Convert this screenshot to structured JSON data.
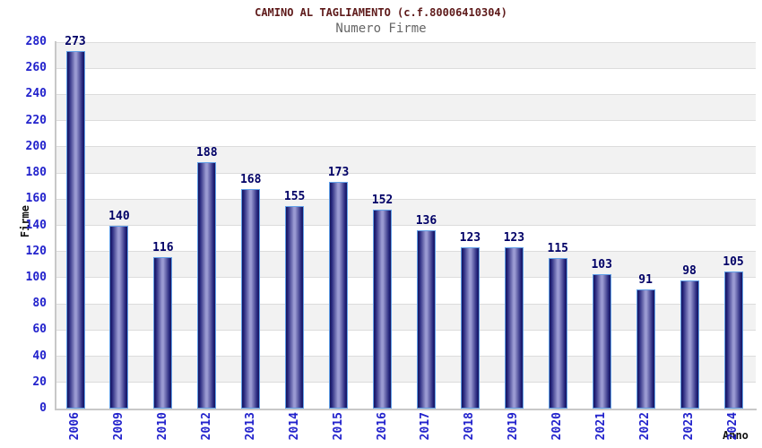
{
  "chart_data": {
    "type": "bar",
    "title": "CAMINO AL TAGLIAMENTO (c.f.80006410304)",
    "subtitle": "Numero Firme",
    "xlabel": "Anno",
    "ylabel": "Firme",
    "categories": [
      "2006",
      "2009",
      "2010",
      "2012",
      "2013",
      "2014",
      "2015",
      "2016",
      "2017",
      "2018",
      "2019",
      "2020",
      "2021",
      "2022",
      "2023",
      "2024"
    ],
    "values": [
      273,
      140,
      116,
      188,
      168,
      155,
      173,
      152,
      136,
      123,
      123,
      115,
      103,
      91,
      98,
      105
    ],
    "ylim": [
      0,
      280
    ],
    "ytick_step": 20,
    "grid": true,
    "legend": "none",
    "band_colors": [
      "#ffffff",
      "#f2f2f2"
    ],
    "colors": {
      "title": "#5e1a1a",
      "subtitle": "#666666",
      "tick_label": "#2222cc",
      "value_label": "#000066",
      "bar_border": "#62a0e8",
      "bar_dark": "#17175e",
      "bar_mid": "#23237a",
      "bar_light": "#9a9ad2",
      "gridline": "#dcdcdc",
      "axis_line": "#c8c8c8",
      "axis_title": "#111111"
    }
  }
}
